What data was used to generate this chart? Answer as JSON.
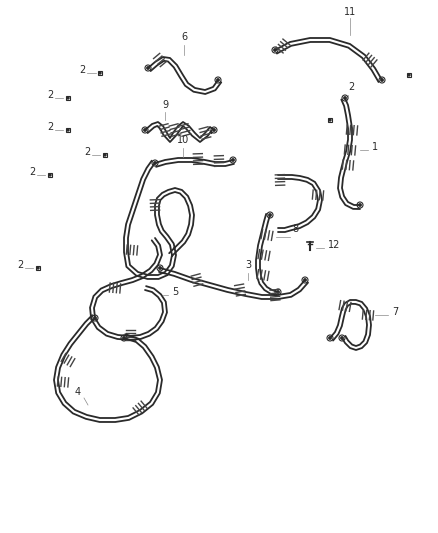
{
  "bg_color": "#ffffff",
  "line_color": "#2a2a2a",
  "label_color": "#1a1a1a",
  "fig_width": 4.38,
  "fig_height": 5.33,
  "dpi": 100,
  "lw": 1.3,
  "clamp_color": "#555555"
}
